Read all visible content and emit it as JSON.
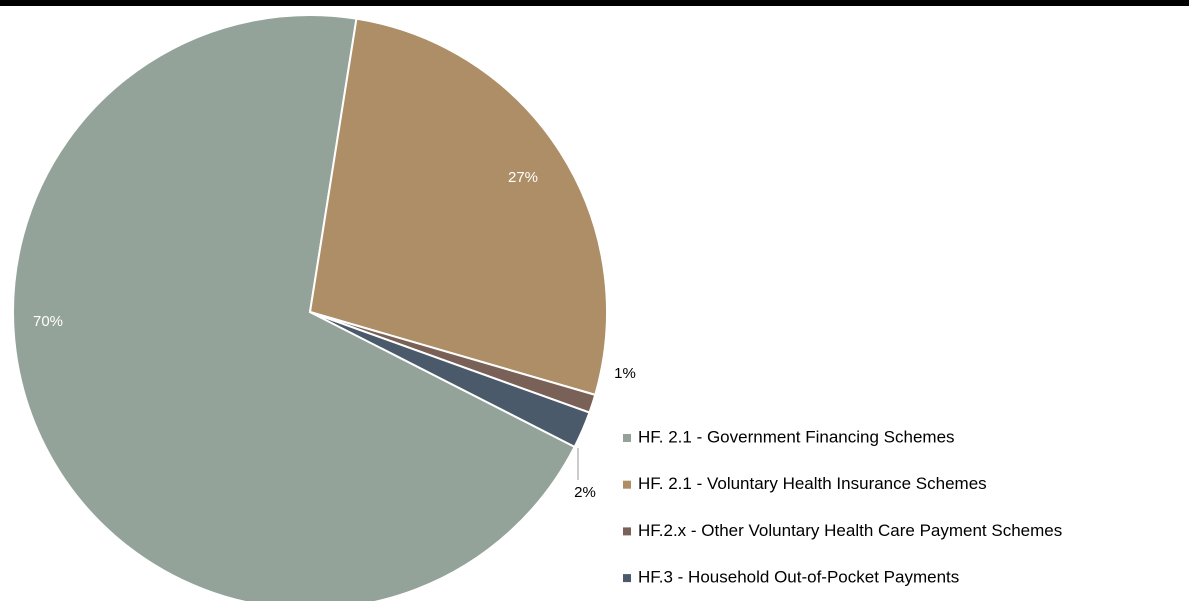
{
  "chart_data": {
    "type": "pie",
    "categories": [
      "HF. 2.1 - Government Financing Schemes",
      "HF. 2.1 - Voluntary Health Insurance Schemes",
      "HF.2.x - Other Voluntary Health Care Payment Schemes",
      "HF.3 - Household Out-of-Pocket Payments"
    ],
    "values": [
      70,
      27,
      1,
      2
    ],
    "value_labels": [
      "70%",
      "27%",
      "1%",
      "2%"
    ],
    "colors": [
      "#93a399",
      "#ad8e66",
      "#7a6158",
      "#4b5a6b"
    ],
    "legend": "right"
  }
}
